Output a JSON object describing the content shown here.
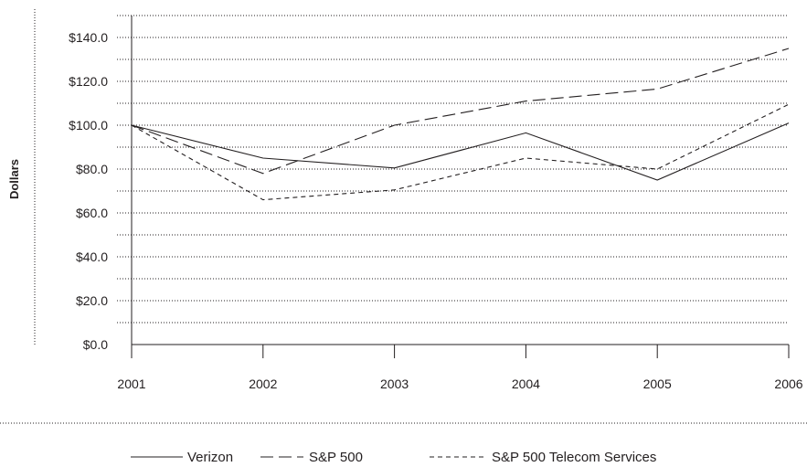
{
  "chart_data": {
    "type": "line",
    "title": "",
    "xlabel": "",
    "ylabel": "Dollars",
    "categories": [
      "2001",
      "2002",
      "2003",
      "2004",
      "2005",
      "2006"
    ],
    "y_ticks": [
      "$0.0",
      "$20.0",
      "$40.0",
      "$60.0",
      "$80.0",
      "$100.0",
      "$120.0",
      "$140.0"
    ],
    "ylim": [
      0,
      150
    ],
    "grid": "dotted horizontal",
    "legend_position": "bottom",
    "series": [
      {
        "name": "Verizon",
        "values": [
          100.0,
          85.0,
          80.5,
          96.5,
          75.0,
          101.0
        ],
        "dash": "solid",
        "color": "#231f20"
      },
      {
        "name": "S&P 500",
        "values": [
          100.0,
          78.0,
          100.0,
          111.0,
          116.5,
          135.0
        ],
        "dash": "long-dash",
        "color": "#231f20"
      },
      {
        "name": "S&P 500 Telecom Services",
        "values": [
          100.0,
          66.0,
          70.5,
          85.0,
          80.0,
          109.5
        ],
        "dash": "short-dash",
        "color": "#231f20"
      }
    ]
  }
}
